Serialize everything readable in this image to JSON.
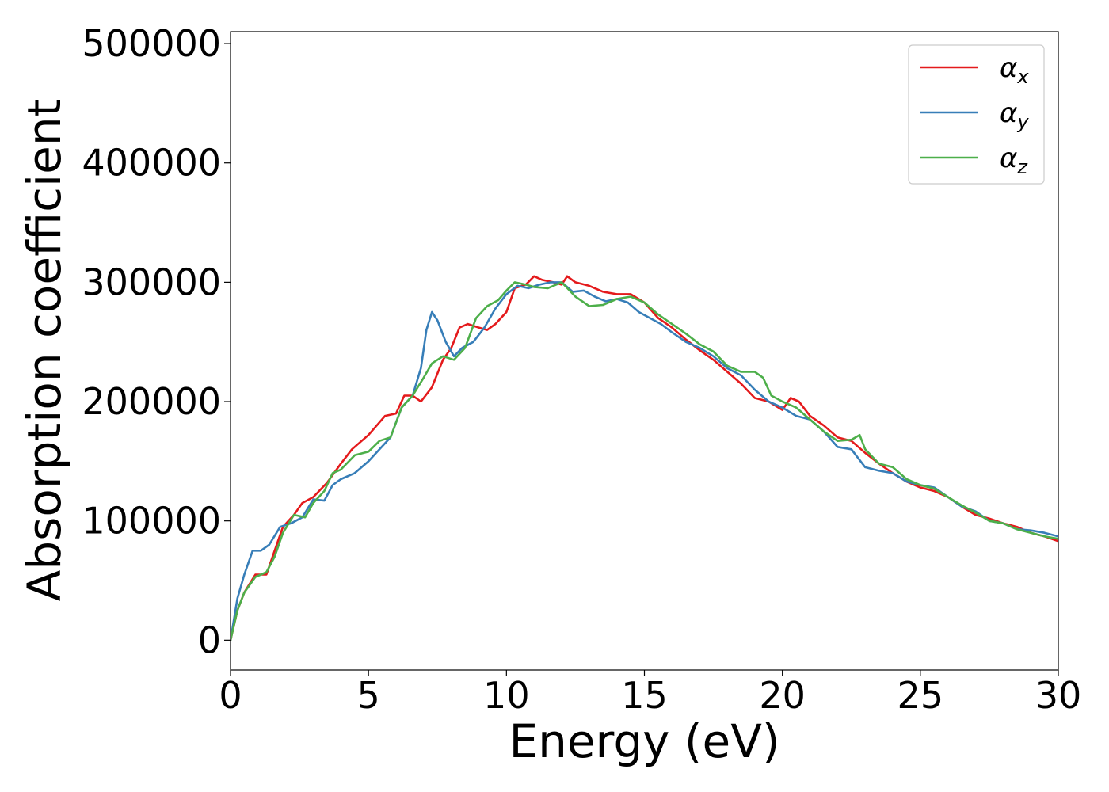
{
  "chart_data": {
    "type": "line",
    "xlabel": "Energy (eV)",
    "ylabel": "Absorption coefficient",
    "xlim": [
      0,
      30
    ],
    "ylim": [
      -25000,
      510000
    ],
    "xticks": [
      0,
      5,
      10,
      15,
      20,
      25,
      30
    ],
    "xtick_labels": [
      "0",
      "5",
      "10",
      "15",
      "20",
      "25",
      "30"
    ],
    "yticks": [
      0,
      100000,
      200000,
      300000,
      400000,
      500000
    ],
    "ytick_labels": [
      "0",
      "100000",
      "200000",
      "300000",
      "400000",
      "500000"
    ],
    "grid": false,
    "legend_position": "top-right",
    "series": [
      {
        "name": "αx",
        "label_base": "α",
        "label_sub": "x",
        "color": "#e41a1c",
        "points": [
          [
            0,
            0
          ],
          [
            0.25,
            25000
          ],
          [
            0.5,
            40000
          ],
          [
            0.9,
            55000
          ],
          [
            1.3,
            55000
          ],
          [
            1.6,
            75000
          ],
          [
            1.9,
            95000
          ],
          [
            2.3,
            105000
          ],
          [
            2.6,
            115000
          ],
          [
            3.0,
            120000
          ],
          [
            3.5,
            132000
          ],
          [
            4.0,
            148000
          ],
          [
            4.4,
            160000
          ],
          [
            5.0,
            172000
          ],
          [
            5.3,
            180000
          ],
          [
            5.6,
            188000
          ],
          [
            6.0,
            190000
          ],
          [
            6.3,
            205000
          ],
          [
            6.6,
            205000
          ],
          [
            6.9,
            200000
          ],
          [
            7.3,
            212000
          ],
          [
            7.7,
            235000
          ],
          [
            8.0,
            245000
          ],
          [
            8.3,
            262000
          ],
          [
            8.6,
            265000
          ],
          [
            9.0,
            262000
          ],
          [
            9.3,
            260000
          ],
          [
            9.6,
            265000
          ],
          [
            10.0,
            275000
          ],
          [
            10.3,
            295000
          ],
          [
            10.7,
            298000
          ],
          [
            11.0,
            305000
          ],
          [
            11.3,
            302000
          ],
          [
            11.7,
            300000
          ],
          [
            12.0,
            298000
          ],
          [
            12.2,
            305000
          ],
          [
            12.5,
            300000
          ],
          [
            13.0,
            297000
          ],
          [
            13.5,
            292000
          ],
          [
            14.0,
            290000
          ],
          [
            14.5,
            290000
          ],
          [
            15.0,
            283000
          ],
          [
            15.5,
            270000
          ],
          [
            16.0,
            262000
          ],
          [
            16.5,
            252000
          ],
          [
            17.0,
            243000
          ],
          [
            17.5,
            235000
          ],
          [
            18.0,
            225000
          ],
          [
            18.5,
            215000
          ],
          [
            19.0,
            203000
          ],
          [
            19.5,
            200000
          ],
          [
            20.0,
            193000
          ],
          [
            20.3,
            203000
          ],
          [
            20.6,
            200000
          ],
          [
            21.0,
            188000
          ],
          [
            21.5,
            180000
          ],
          [
            22.0,
            170000
          ],
          [
            22.5,
            167000
          ],
          [
            23.0,
            157000
          ],
          [
            23.5,
            148000
          ],
          [
            24.0,
            140000
          ],
          [
            24.5,
            133000
          ],
          [
            25.0,
            128000
          ],
          [
            25.5,
            125000
          ],
          [
            26.0,
            120000
          ],
          [
            26.5,
            112000
          ],
          [
            27.0,
            105000
          ],
          [
            27.5,
            102000
          ],
          [
            28.0,
            98000
          ],
          [
            28.5,
            95000
          ],
          [
            29.0,
            90000
          ],
          [
            29.5,
            87000
          ],
          [
            30.0,
            83000
          ]
        ]
      },
      {
        "name": "αy",
        "label_base": "α",
        "label_sub": "y",
        "color": "#377eb8",
        "points": [
          [
            0,
            0
          ],
          [
            0.25,
            35000
          ],
          [
            0.5,
            55000
          ],
          [
            0.8,
            75000
          ],
          [
            1.1,
            75000
          ],
          [
            1.4,
            80000
          ],
          [
            1.8,
            95000
          ],
          [
            2.2,
            98000
          ],
          [
            2.6,
            103000
          ],
          [
            3.0,
            118000
          ],
          [
            3.4,
            117000
          ],
          [
            3.7,
            130000
          ],
          [
            4.0,
            135000
          ],
          [
            4.5,
            140000
          ],
          [
            5.0,
            150000
          ],
          [
            5.4,
            160000
          ],
          [
            5.8,
            170000
          ],
          [
            6.2,
            195000
          ],
          [
            6.6,
            205000
          ],
          [
            6.9,
            228000
          ],
          [
            7.1,
            260000
          ],
          [
            7.3,
            275000
          ],
          [
            7.5,
            268000
          ],
          [
            7.8,
            250000
          ],
          [
            8.1,
            238000
          ],
          [
            8.4,
            245000
          ],
          [
            8.8,
            250000
          ],
          [
            9.2,
            262000
          ],
          [
            9.6,
            278000
          ],
          [
            10.0,
            290000
          ],
          [
            10.4,
            297000
          ],
          [
            10.8,
            295000
          ],
          [
            11.2,
            298000
          ],
          [
            11.6,
            300000
          ],
          [
            12.0,
            300000
          ],
          [
            12.4,
            292000
          ],
          [
            12.8,
            293000
          ],
          [
            13.2,
            288000
          ],
          [
            13.6,
            284000
          ],
          [
            14.0,
            286000
          ],
          [
            14.4,
            283000
          ],
          [
            14.8,
            275000
          ],
          [
            15.2,
            270000
          ],
          [
            15.6,
            265000
          ],
          [
            16.0,
            258000
          ],
          [
            16.5,
            250000
          ],
          [
            17.0,
            245000
          ],
          [
            17.5,
            238000
          ],
          [
            18.0,
            228000
          ],
          [
            18.5,
            222000
          ],
          [
            19.0,
            210000
          ],
          [
            19.5,
            200000
          ],
          [
            20.0,
            195000
          ],
          [
            20.5,
            188000
          ],
          [
            21.0,
            185000
          ],
          [
            21.5,
            175000
          ],
          [
            22.0,
            162000
          ],
          [
            22.5,
            160000
          ],
          [
            23.0,
            145000
          ],
          [
            23.5,
            142000
          ],
          [
            24.0,
            140000
          ],
          [
            24.5,
            133000
          ],
          [
            25.0,
            130000
          ],
          [
            25.5,
            128000
          ],
          [
            26.0,
            120000
          ],
          [
            26.5,
            112000
          ],
          [
            27.0,
            108000
          ],
          [
            27.5,
            100000
          ],
          [
            28.0,
            98000
          ],
          [
            28.5,
            93000
          ],
          [
            29.0,
            92000
          ],
          [
            29.5,
            90000
          ],
          [
            30.0,
            87000
          ]
        ]
      },
      {
        "name": "αz",
        "label_base": "α",
        "label_sub": "z",
        "color": "#4daf4a",
        "points": [
          [
            0,
            0
          ],
          [
            0.25,
            25000
          ],
          [
            0.5,
            40000
          ],
          [
            0.9,
            53000
          ],
          [
            1.3,
            57000
          ],
          [
            1.6,
            70000
          ],
          [
            1.9,
            90000
          ],
          [
            2.3,
            105000
          ],
          [
            2.7,
            103000
          ],
          [
            3.0,
            115000
          ],
          [
            3.4,
            125000
          ],
          [
            3.7,
            140000
          ],
          [
            4.0,
            143000
          ],
          [
            4.5,
            155000
          ],
          [
            5.0,
            158000
          ],
          [
            5.4,
            167000
          ],
          [
            5.8,
            170000
          ],
          [
            6.2,
            195000
          ],
          [
            6.6,
            205000
          ],
          [
            7.0,
            220000
          ],
          [
            7.3,
            232000
          ],
          [
            7.7,
            238000
          ],
          [
            8.1,
            235000
          ],
          [
            8.5,
            245000
          ],
          [
            8.9,
            270000
          ],
          [
            9.3,
            280000
          ],
          [
            9.7,
            285000
          ],
          [
            10.0,
            293000
          ],
          [
            10.3,
            300000
          ],
          [
            10.7,
            298000
          ],
          [
            11.0,
            296000
          ],
          [
            11.5,
            295000
          ],
          [
            12.0,
            300000
          ],
          [
            12.5,
            288000
          ],
          [
            13.0,
            280000
          ],
          [
            13.5,
            281000
          ],
          [
            14.0,
            286000
          ],
          [
            14.5,
            288000
          ],
          [
            15.0,
            283000
          ],
          [
            15.5,
            273000
          ],
          [
            16.0,
            265000
          ],
          [
            16.5,
            257000
          ],
          [
            17.0,
            248000
          ],
          [
            17.5,
            242000
          ],
          [
            18.0,
            230000
          ],
          [
            18.5,
            225000
          ],
          [
            19.0,
            225000
          ],
          [
            19.3,
            220000
          ],
          [
            19.6,
            205000
          ],
          [
            20.0,
            200000
          ],
          [
            20.5,
            195000
          ],
          [
            21.0,
            185000
          ],
          [
            21.5,
            175000
          ],
          [
            22.0,
            167000
          ],
          [
            22.5,
            168000
          ],
          [
            22.8,
            172000
          ],
          [
            23.0,
            160000
          ],
          [
            23.5,
            148000
          ],
          [
            24.0,
            145000
          ],
          [
            24.5,
            135000
          ],
          [
            25.0,
            130000
          ],
          [
            25.5,
            127000
          ],
          [
            26.0,
            120000
          ],
          [
            26.5,
            113000
          ],
          [
            27.0,
            107000
          ],
          [
            27.5,
            100000
          ],
          [
            28.0,
            98000
          ],
          [
            28.5,
            93000
          ],
          [
            29.0,
            90000
          ],
          [
            29.5,
            87000
          ],
          [
            30.0,
            85000
          ]
        ]
      }
    ]
  }
}
